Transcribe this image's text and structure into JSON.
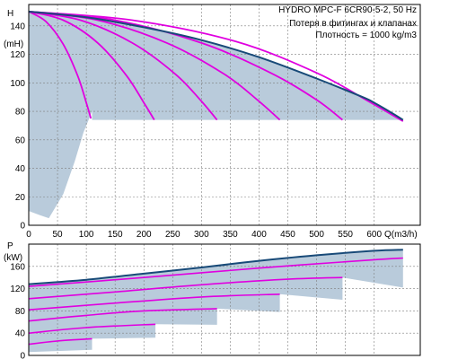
{
  "chart_data": [
    {
      "type": "line",
      "title": "HYDRO MPC-F 6CR90-5-2, 50 Hz",
      "annotations": [
        "Потеря в фитингах и клапанах",
        "Плотность = 1000 kg/m3"
      ],
      "ylabel": "H",
      "yunit": "(mH)",
      "xlabel": "Q(m3/h)",
      "xlim": [
        0,
        680
      ],
      "ylim": [
        0,
        155
      ],
      "xticks": [
        0,
        50,
        100,
        150,
        200,
        250,
        300,
        350,
        400,
        450,
        500,
        550,
        600
      ],
      "yticks": [
        0,
        20,
        40,
        60,
        80,
        100,
        120,
        140
      ],
      "grid": true,
      "colors": {
        "envelope": "#184a78",
        "series": "#e000e0",
        "shade": "#b9cbdb"
      },
      "envelope": {
        "x": [
          0,
          100,
          200,
          300,
          400,
          500,
          580,
          600,
          630,
          650
        ],
        "y": [
          150,
          146,
          139,
          130,
          118,
          103,
          90,
          86,
          79,
          74
        ]
      },
      "series": [
        {
          "x": [
            0,
            30,
            60,
            85,
            100,
            108
          ],
          "y": [
            150,
            143,
            127,
            105,
            86,
            75
          ]
        },
        {
          "x": [
            0,
            60,
            120,
            170,
            200,
            218
          ],
          "y": [
            150,
            144,
            128,
            105,
            86,
            74
          ]
        },
        {
          "x": [
            0,
            90,
            180,
            255,
            300,
            327
          ],
          "y": [
            150,
            144,
            128,
            106,
            87,
            74
          ]
        },
        {
          "x": [
            0,
            120,
            240,
            340,
            400,
            436
          ],
          "y": [
            150,
            144,
            128,
            106,
            87,
            74
          ]
        },
        {
          "x": [
            0,
            150,
            300,
            420,
            500,
            545
          ],
          "y": [
            150,
            144,
            128,
            107,
            88,
            74
          ]
        },
        {
          "x": [
            0,
            180,
            360,
            500,
            590,
            650
          ],
          "y": [
            150,
            144,
            129,
            107,
            87,
            73
          ]
        }
      ],
      "lower_boundary": {
        "x": [
          0,
          20,
          35,
          60,
          80,
          95,
          105,
          110
        ],
        "y": [
          10,
          7,
          5,
          22,
          45,
          65,
          75,
          80
        ]
      }
    },
    {
      "type": "line",
      "ylabel": "P",
      "yunit": "(kW)",
      "xlim": [
        0,
        680
      ],
      "ylim": [
        0,
        200
      ],
      "yticks": [
        0,
        40,
        80,
        120,
        160
      ],
      "grid": true,
      "colors": {
        "envelope": "#184a78",
        "series": "#e000e0",
        "shade": "#b9cbdb"
      },
      "envelope": {
        "x": [
          0,
          100,
          200,
          300,
          400,
          500,
          600,
          650
        ],
        "y": [
          128,
          136,
          147,
          158,
          170,
          180,
          188,
          190
        ]
      },
      "series": [
        {
          "x": [
            0,
            50,
            110
          ],
          "y": [
            20,
            26,
            30
          ]
        },
        {
          "x": [
            0,
            100,
            220
          ],
          "y": [
            40,
            50,
            56
          ]
        },
        {
          "x": [
            0,
            100,
            200,
            327
          ],
          "y": [
            62,
            72,
            80,
            84
          ]
        },
        {
          "x": [
            0,
            150,
            300,
            436
          ],
          "y": [
            82,
            94,
            105,
            110
          ]
        },
        {
          "x": [
            0,
            150,
            300,
            450,
            545
          ],
          "y": [
            102,
            114,
            127,
            137,
            140
          ]
        },
        {
          "x": [
            0,
            200,
            400,
            600,
            650
          ],
          "y": [
            124,
            140,
            157,
            172,
            175
          ]
        }
      ],
      "shade_tips": [
        {
          "x": 110,
          "y": 10
        },
        {
          "x": 220,
          "y": 32
        },
        {
          "x": 327,
          "y": 55
        },
        {
          "x": 436,
          "y": 78
        },
        {
          "x": 545,
          "y": 100
        },
        {
          "x": 650,
          "y": 122
        }
      ]
    }
  ]
}
